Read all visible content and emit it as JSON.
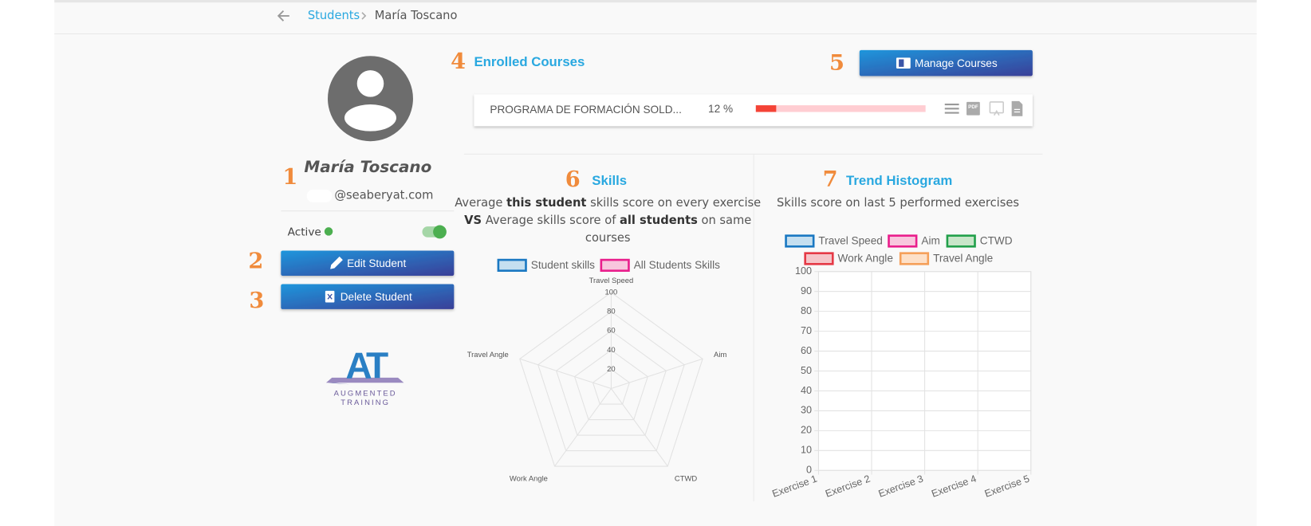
{
  "breadcrumb": {
    "parent": "Students",
    "current": "María Toscano"
  },
  "profile": {
    "name": "María Toscano",
    "email": "@seaberyat.com",
    "status": "Active",
    "buttons": [
      "Edit Student",
      "Delete Student"
    ],
    "logo": {
      "mark": "AT",
      "line1": "AUGMENTED",
      "line2": "TRAINING"
    }
  },
  "annotations": [
    "1",
    "2",
    "3",
    "4",
    "5",
    "6",
    "7"
  ],
  "courses": {
    "title": "Enrolled Courses",
    "button": "Manage Courses",
    "items": [
      {
        "name": "PROGRAMA DE FORMACIÓN SOLD...",
        "progress": 12,
        "progress_label": "12 %"
      }
    ]
  },
  "skills": {
    "title": "Skills",
    "description": [
      [
        "Average ",
        "this student",
        " skills score on every exercise"
      ],
      [
        "VS",
        " Average skills score of ",
        "all students",
        " on same"
      ],
      [
        "courses"
      ]
    ],
    "legend": [
      {
        "name": "Student skills",
        "color": "#1a78c2",
        "fill": "#c5dff0"
      },
      {
        "name": "All Students Skills",
        "color": "#e91e8c",
        "fill": "#f8c6dd"
      }
    ],
    "axes": [
      "Travel Speed",
      "Aim",
      "CTWD",
      "Work Angle",
      "Travel Angle"
    ],
    "rlim": [
      0,
      100
    ],
    "rticks": [
      20,
      40,
      60,
      80,
      100
    ]
  },
  "trend": {
    "title": "Trend Histogram",
    "subtitle": "Skills score on last 5 performed exercises",
    "legend": [
      {
        "name": "Travel Speed",
        "color": "#1a78c2",
        "fill": "#c5dff0"
      },
      {
        "name": "Aim",
        "color": "#e91e8c",
        "fill": "#f8c6dd"
      },
      {
        "name": "CTWD",
        "color": "#22a04b",
        "fill": "#c8e6c9"
      },
      {
        "name": "Work Angle",
        "color": "#e53946",
        "fill": "#f5c5c9"
      },
      {
        "name": "Travel Angle",
        "color": "#f5a05a",
        "fill": "#fde0c8"
      }
    ],
    "categories": [
      "Exercise 1",
      "Exercise 2",
      "Exercise 3",
      "Exercise 4",
      "Exercise 5"
    ],
    "ylim": [
      0,
      100
    ],
    "yticks": [
      0,
      10,
      20,
      30,
      40,
      50,
      60,
      70,
      80,
      90,
      100
    ]
  }
}
